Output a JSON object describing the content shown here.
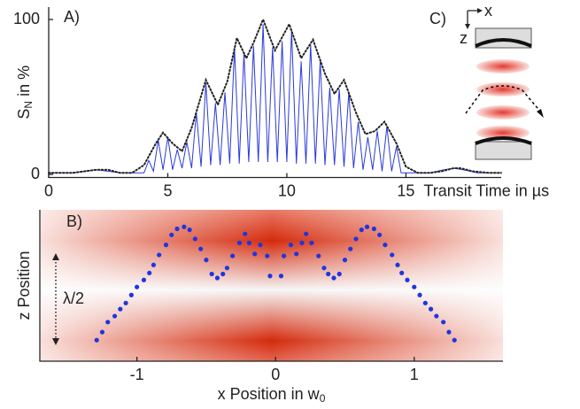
{
  "chart_data": [
    {
      "type": "line",
      "title": "A)",
      "xlabel": "Transit Time in µs",
      "ylabel": {
        "text": "S",
        "subscript": "N",
        "suffix": " in %"
      },
      "xlim": [
        0,
        19
      ],
      "ylim": [
        -2,
        108
      ],
      "xticks": [
        0,
        5,
        10,
        15
      ],
      "yticks": [
        0,
        100
      ],
      "series": [
        {
          "color": "#2b3bd8",
          "style": "solid",
          "x": [
            0,
            1,
            1.5,
            2,
            2.5,
            3,
            3.6,
            4,
            4.2,
            4.4,
            4.6,
            4.8,
            5,
            5.2,
            5.4,
            5.6,
            5.8,
            6,
            6.2,
            6.4,
            6.6,
            6.8,
            7,
            7.2,
            7.4,
            7.6,
            7.8,
            8,
            8.2,
            8.4,
            8.6,
            8.8,
            9,
            9.2,
            9.4,
            9.6,
            9.8,
            10,
            10.2,
            10.4,
            10.6,
            10.8,
            11,
            11.2,
            11.4,
            11.6,
            11.8,
            12,
            12.2,
            12.4,
            12.6,
            12.8,
            13,
            13.2,
            13.4,
            13.6,
            13.8,
            14,
            14.2,
            14.4,
            14.6,
            14.8,
            15.2,
            16,
            16.6,
            17,
            17.4,
            18,
            19
          ],
          "values": [
            1,
            1,
            2,
            3,
            2,
            1,
            1,
            1,
            9,
            2,
            22,
            3,
            24,
            3,
            16,
            4,
            21,
            4,
            40,
            5,
            59,
            6,
            46,
            6,
            53,
            7,
            82,
            7,
            78,
            8,
            83,
            8,
            97,
            8,
            82,
            8,
            86,
            8,
            93,
            7,
            73,
            7,
            84,
            7,
            73,
            6,
            56,
            6,
            55,
            5,
            53,
            4,
            34,
            3,
            24,
            3,
            28,
            2,
            31,
            2,
            18,
            1,
            1,
            1,
            3,
            4,
            3,
            1,
            1
          ]
        },
        {
          "color": "#222222",
          "style": "dotted",
          "x": [
            0,
            0.5,
            1,
            1.5,
            2,
            2.5,
            3,
            3.5,
            4,
            4.5,
            4.8,
            5.2,
            5.6,
            6,
            6.6,
            7.1,
            7.5,
            7.9,
            8.3,
            8.6,
            9,
            9.5,
            10.1,
            10.6,
            11.1,
            11.6,
            12,
            12.4,
            12.9,
            13.3,
            13.7,
            14.1,
            14.6,
            15,
            15.5,
            16,
            16.5,
            17,
            17.3,
            17.8,
            18.5,
            19
          ],
          "values": [
            1,
            1,
            1,
            2,
            3,
            3,
            1,
            1,
            6,
            20,
            27,
            20,
            15,
            30,
            61,
            45,
            60,
            88,
            75,
            85,
            100,
            80,
            97,
            75,
            87,
            65,
            52,
            61,
            40,
            26,
            28,
            34,
            20,
            5,
            1,
            1,
            2,
            4,
            4,
            2,
            1,
            1
          ]
        }
      ]
    },
    {
      "type": "scatter",
      "title": "B)",
      "xlabel": {
        "text": "x Position in w",
        "subscript": "0"
      },
      "ylabel": "z Position",
      "annotation": "λ/2",
      "color": "#1f35e0",
      "xlim": [
        -1.7,
        1.64
      ],
      "ylim": [
        -0.2,
        1.31
      ],
      "xticks": [
        -1,
        0,
        1
      ],
      "x": [
        -1.29,
        -1.25,
        -1.21,
        -1.16,
        -1.12,
        -1.08,
        -1.04,
        -1.0,
        -0.95,
        -0.91,
        -0.88,
        -0.84,
        -0.79,
        -0.75,
        -0.71,
        -0.66,
        -0.62,
        -0.58,
        -0.54,
        -0.5,
        -0.46,
        -0.42,
        -0.38,
        -0.35,
        -0.31,
        -0.26,
        -0.22,
        -0.19,
        -0.15,
        -0.11,
        -0.06,
        -0.04,
        0.04,
        0.06,
        0.11,
        0.15,
        0.19,
        0.22,
        0.26,
        0.31,
        0.35,
        0.38,
        0.42,
        0.46,
        0.5,
        0.54,
        0.58,
        0.62,
        0.66,
        0.71,
        0.75,
        0.79,
        0.84,
        0.88,
        0.91,
        0.95,
        1.0,
        1.04,
        1.08,
        1.12,
        1.16,
        1.21,
        1.25,
        1.29
      ],
      "values": [
        0.01,
        0.09,
        0.19,
        0.25,
        0.32,
        0.38,
        0.46,
        0.54,
        0.61,
        0.68,
        0.76,
        0.86,
        0.96,
        1.06,
        1.12,
        1.14,
        1.11,
        1.02,
        0.92,
        0.81,
        0.67,
        0.63,
        0.67,
        0.73,
        0.85,
        0.98,
        1.07,
        0.98,
        0.87,
        0.96,
        0.85,
        0.65,
        0.65,
        0.85,
        0.96,
        0.87,
        0.98,
        1.07,
        0.98,
        0.85,
        0.73,
        0.67,
        0.63,
        0.67,
        0.81,
        0.92,
        1.02,
        1.11,
        1.14,
        1.12,
        1.06,
        0.96,
        0.86,
        0.76,
        0.68,
        0.61,
        0.54,
        0.46,
        0.38,
        0.32,
        0.25,
        0.19,
        0.09,
        0.01
      ]
    }
  ],
  "inset": {
    "label": "C)",
    "x_axis": "x",
    "z_axis": "z"
  }
}
